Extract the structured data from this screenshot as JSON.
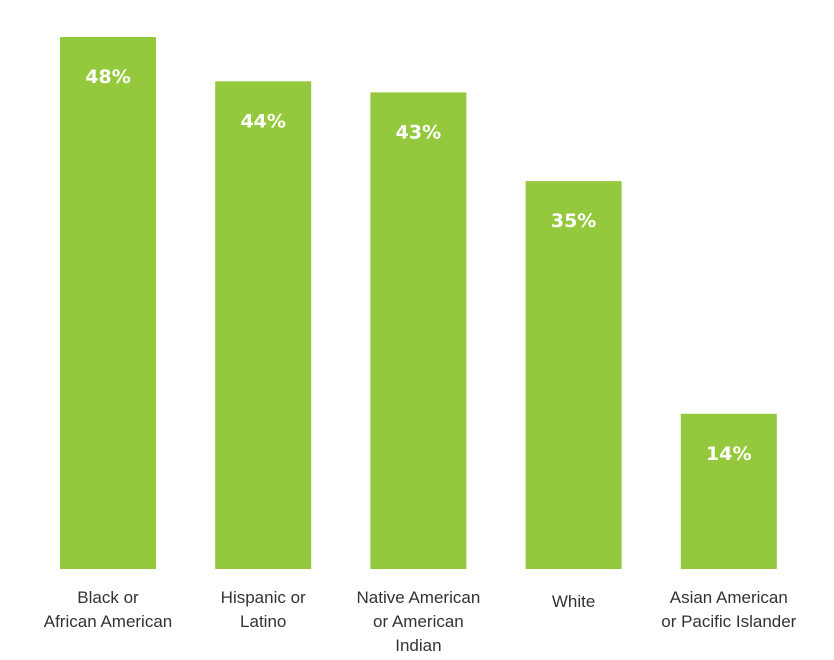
{
  "chart_data": {
    "type": "bar",
    "title": "",
    "xlabel": "",
    "ylabel": "",
    "ylim": [
      0,
      48
    ],
    "grid": false,
    "legend": "none",
    "bar_color": "#95c93d",
    "value_label_color": "#ffffff",
    "categories": [
      [
        "Black or",
        "African American"
      ],
      [
        "Hispanic or",
        "Latino"
      ],
      [
        "Native American",
        "or American",
        "Indian"
      ],
      [
        "White"
      ],
      [
        "Asian American",
        "or Pacific Islander"
      ]
    ],
    "values": [
      48,
      44,
      43,
      35,
      14
    ],
    "value_labels": [
      "48%",
      "44%",
      "43%",
      "35%",
      "14%"
    ]
  }
}
